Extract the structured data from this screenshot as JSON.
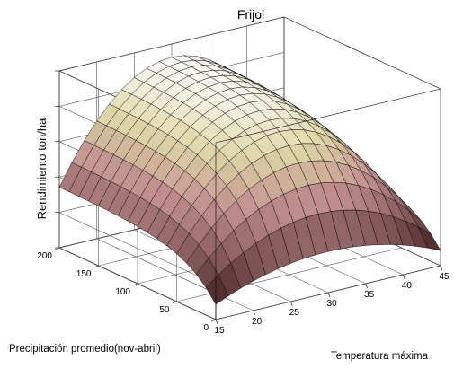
{
  "chart_data": {
    "type": "surface",
    "title": "Frijol",
    "xlabel": "Temperatura máxima",
    "ylabel": "Precipitación promedio(nov-abril)",
    "zlabel": "Rendimiento ton/ha",
    "x_ticks": [
      "15",
      "20",
      "25",
      "30",
      "35",
      "40",
      "45"
    ],
    "y_ticks": [
      "0",
      "50",
      "100",
      "150",
      "200"
    ],
    "z_ticks": [
      "",
      "",
      "",
      "",
      "",
      ""
    ],
    "xlim": [
      15,
      45
    ],
    "ylim": [
      0,
      200
    ],
    "zlim": [
      0,
      1
    ],
    "grid": true,
    "colormap": "pink",
    "grid_size": [
      19,
      17
    ],
    "surface_model": {
      "description_free": true,
      "peak_temperature": 30,
      "temperature_curvature": 0.0028,
      "precip_saturation": 40,
      "max_value": 0.93
    }
  }
}
